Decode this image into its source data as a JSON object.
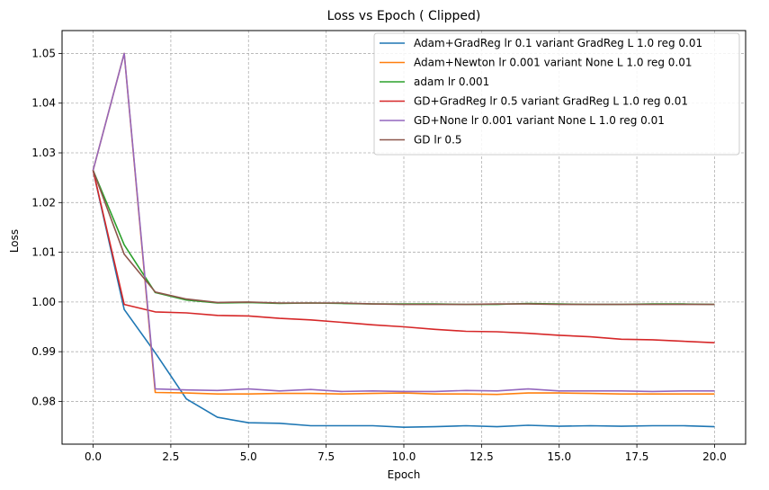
{
  "chart_data": {
    "type": "line",
    "title": "Loss vs Epoch ( Clipped)",
    "xlabel": "Epoch",
    "ylabel": "Loss",
    "xlim": [
      -1.0,
      21.0
    ],
    "ylim": [
      0.9714,
      1.0546
    ],
    "xticks": [
      0.0,
      2.5,
      5.0,
      7.5,
      10.0,
      12.5,
      15.0,
      17.5,
      20.0
    ],
    "xtick_labels": [
      "0.0",
      "2.5",
      "5.0",
      "7.5",
      "10.0",
      "12.5",
      "15.0",
      "17.5",
      "20.0"
    ],
    "yticks": [
      0.98,
      0.99,
      1.0,
      1.01,
      1.02,
      1.03,
      1.04,
      1.05
    ],
    "ytick_labels": [
      "0.98",
      "0.99",
      "1.00",
      "1.01",
      "1.02",
      "1.03",
      "1.04",
      "1.05"
    ],
    "grid": true,
    "legend_position": "top-right",
    "x": [
      0,
      1,
      2,
      3,
      4,
      5,
      6,
      7,
      8,
      9,
      10,
      11,
      12,
      13,
      14,
      15,
      16,
      17,
      18,
      19,
      20
    ],
    "series": [
      {
        "name": "Adam+GradReg lr 0.1 variant GradReg L 1.0 reg 0.01",
        "color": "#1f77b4",
        "values": [
          1.0265,
          0.9985,
          0.9898,
          0.9805,
          0.9768,
          0.9757,
          0.9756,
          0.9751,
          0.9751,
          0.9751,
          0.9748,
          0.9749,
          0.9751,
          0.9749,
          0.9752,
          0.975,
          0.9751,
          0.975,
          0.9751,
          0.9751,
          0.9749
        ]
      },
      {
        "name": "Adam+Newton lr 0.001 variant None L 1.0 reg 0.01",
        "color": "#ff7f0e",
        "values": [
          1.0265,
          1.05,
          0.9818,
          0.9817,
          0.9815,
          0.9815,
          0.9816,
          0.9816,
          0.9815,
          0.9816,
          0.9817,
          0.9815,
          0.9815,
          0.9814,
          0.9817,
          0.9817,
          0.9816,
          0.9815,
          0.9815,
          0.9815,
          0.9815
        ]
      },
      {
        "name": "adam lr 0.001",
        "color": "#2ca02c",
        "values": [
          1.0265,
          1.0115,
          1.0019,
          1.0004,
          0.9998,
          0.9999,
          0.9997,
          0.9998,
          0.9997,
          0.9996,
          0.9996,
          0.9996,
          0.9995,
          0.9995,
          0.9997,
          0.9996,
          0.9995,
          0.9995,
          0.9996,
          0.9996,
          0.9995
        ]
      },
      {
        "name": "GD+GradReg lr 0.5 variant GradReg L 1.0 reg 0.01",
        "color": "#d62728",
        "values": [
          1.0265,
          0.9995,
          0.998,
          0.9978,
          0.9973,
          0.9972,
          0.9967,
          0.9964,
          0.9959,
          0.9954,
          0.995,
          0.9945,
          0.9941,
          0.994,
          0.9937,
          0.9933,
          0.993,
          0.9925,
          0.9924,
          0.9921,
          0.9918
        ]
      },
      {
        "name": "GD+None lr 0.001 variant None L 1.0 reg 0.01",
        "color": "#9467bd",
        "values": [
          1.0265,
          1.05,
          0.9825,
          0.9823,
          0.9822,
          0.9825,
          0.9821,
          0.9824,
          0.982,
          0.9821,
          0.982,
          0.982,
          0.9822,
          0.9821,
          0.9825,
          0.9821,
          0.9821,
          0.9821,
          0.982,
          0.9821,
          0.9821
        ]
      },
      {
        "name": "GD lr 0.5",
        "color": "#8c564b",
        "values": [
          1.0265,
          1.0096,
          1.002,
          1.0006,
          0.9999,
          1.0,
          0.9998,
          0.9998,
          0.9998,
          0.9996,
          0.9995,
          0.9995,
          0.9995,
          0.9996,
          0.9996,
          0.9995,
          0.9995,
          0.9995,
          0.9995,
          0.9995,
          0.9995
        ]
      }
    ]
  }
}
